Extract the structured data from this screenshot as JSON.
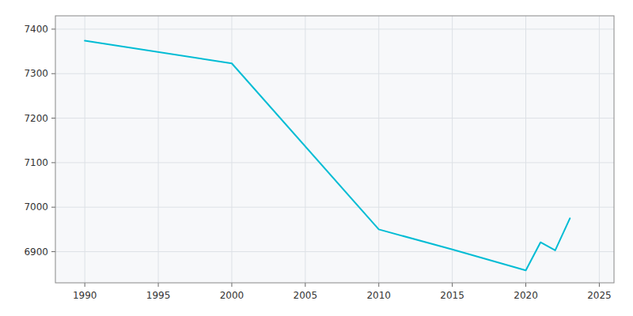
{
  "chart_data": {
    "type": "line",
    "x": [
      1990,
      2000,
      2010,
      2015,
      2020,
      2021,
      2022,
      2023
    ],
    "values": [
      7374,
      7323,
      6950,
      6905,
      6858,
      6921,
      6903,
      6975
    ],
    "color": "#00BCD4",
    "xlim": [
      1988,
      2026
    ],
    "xticks": [
      1990,
      1995,
      2000,
      2005,
      2010,
      2015,
      2020,
      2025
    ],
    "ylim": [
      6830,
      7430
    ],
    "yticks": [
      6900,
      7000,
      7100,
      7200,
      7300,
      7400
    ],
    "grid": true
  }
}
